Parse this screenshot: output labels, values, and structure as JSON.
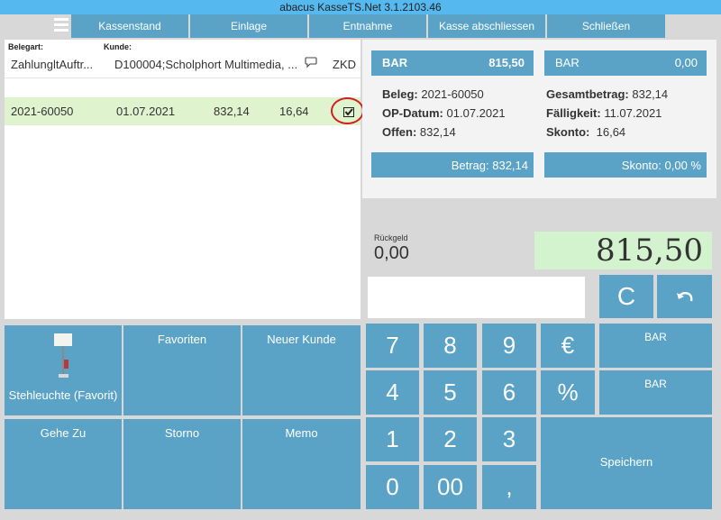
{
  "window": {
    "title": "abacus KasseTS.Net 3.1.2103.46"
  },
  "nav": {
    "items": [
      "Kassenstand",
      "Einlage",
      "Entnahme",
      "Kasse abschliessen",
      "Schließen"
    ]
  },
  "list": {
    "headers": {
      "belegart": "Belegart:",
      "kunde": "Kunde:",
      "zkd": "ZKD"
    },
    "header_values": {
      "belegart": "ZahlungltAuftr...",
      "kunde": "D100004;Scholphort Multimedia, ..."
    },
    "rows": [
      {
        "beleg": "2021-60050",
        "datum": "01.07.2021",
        "betrag": "832,14",
        "skonto": "16,64",
        "checked": true
      }
    ]
  },
  "payment": {
    "left": {
      "method": "BAR",
      "amount": "815,50"
    },
    "right": {
      "method": "BAR",
      "amount": "0,00"
    },
    "info": {
      "beleg_label": "Beleg:",
      "beleg": "2021-60050",
      "opdatum_label": "OP-Datum:",
      "opdatum": "01.07.2021",
      "offen_label": "Offen:",
      "offen": "832,14",
      "gesamt_label": "Gesamtbetrag:",
      "gesamt": "832,14",
      "faellig_label": "Fälligkeit:",
      "faellig": "11.07.2021",
      "skonto_label": "Skonto:",
      "skonto": "16,64"
    },
    "betrag": {
      "label": "Betrag:",
      "value": "832,14"
    },
    "skonto_pct": {
      "label": "Skonto:",
      "value": "0,00 %"
    }
  },
  "change": {
    "label": "Rückgeld",
    "value": "0,00"
  },
  "total": {
    "value": "815,50"
  },
  "buttons": {
    "clear": "C",
    "tiles": [
      "Stehleuchte (Favorit)",
      "Favoriten",
      "Neuer Kunde",
      "Gehe Zu",
      "Storno",
      "Memo"
    ],
    "keys": [
      "7",
      "8",
      "9",
      "€",
      "4",
      "5",
      "6",
      "%",
      "1",
      "2",
      "3",
      "0",
      "00",
      ","
    ],
    "bar1": "BAR",
    "bar2": "BAR",
    "save": "Speichern"
  },
  "colors": {
    "titlebar": "#55b8ee",
    "accent": "#5aa3c6",
    "selected_row": "#dff3cf",
    "total_bg": "#d3f3ce"
  }
}
